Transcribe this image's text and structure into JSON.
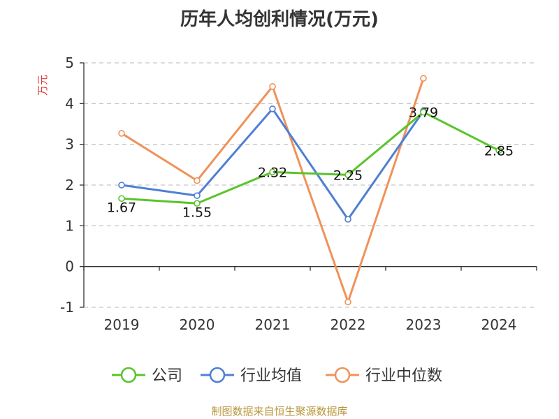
{
  "chart_data": {
    "type": "line",
    "title": "历年人均创利情况(万元)",
    "ylabel": "万元",
    "xlabel": "",
    "categories": [
      "2019",
      "2020",
      "2021",
      "2022",
      "2023",
      "2024"
    ],
    "ylim": [
      -1,
      5
    ],
    "yticks": [
      -1,
      0,
      1,
      2,
      3,
      4,
      5
    ],
    "grid": true,
    "legend_position": "bottom",
    "series": [
      {
        "name": "公司",
        "color": "#5ac42b",
        "values": [
          1.67,
          1.55,
          2.32,
          2.25,
          3.79,
          2.85
        ],
        "data_labels": [
          "1.67",
          "1.55",
          "2.32",
          "2.25",
          "3.79",
          "2.85"
        ]
      },
      {
        "name": "行业均值",
        "color": "#4f7fd4",
        "values": [
          2.0,
          1.74,
          3.87,
          1.16,
          3.82,
          null
        ]
      },
      {
        "name": "行业中位数",
        "color": "#f0925a",
        "values": [
          3.27,
          2.11,
          4.42,
          -0.87,
          4.62,
          null
        ]
      }
    ]
  },
  "source": "制图数据来自恒生聚源数据库"
}
